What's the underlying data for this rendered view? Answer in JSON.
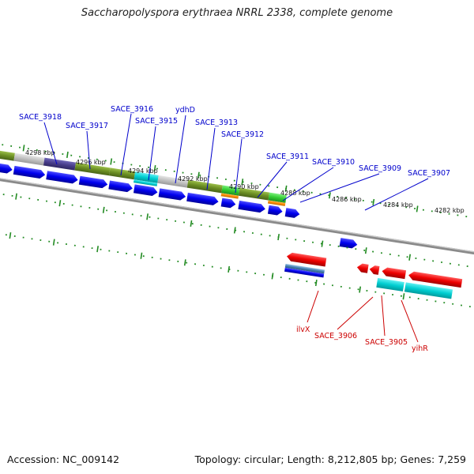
{
  "title": "Saccharopolyspora erythraea NRRL 2338, complete genome",
  "accession_text": "Accession: NC_009142",
  "summary_text": "Topology: circular; Length: 8,212,805 bp; Genes: 7,259",
  "colors": {
    "forward_gene": "#0000ee",
    "reverse_gene": "#ee0000",
    "label_forward": "#0000cc",
    "label_reverse": "#cc0000",
    "tick": "#228b22",
    "backbone": "#888888",
    "olive": "#6b8e23",
    "grey": "#c0c0c0",
    "slate": "#483d8b",
    "cyan": "#00ced1",
    "green": "#32cd32",
    "orange": "#ff8c00"
  },
  "kbp_labels": [
    "4298 kbp",
    "4296 kbp",
    "4294 kbp",
    "4292 kbp",
    "4290 kbp",
    "4288 kbp",
    "4286 kbp",
    "4284 kbp",
    "4282 kbp"
  ],
  "forward_labels": [
    "SACE_3918",
    "SACE_3917",
    "SACE_3916",
    "SACE_3915",
    "ydhD",
    "SACE_3913",
    "SACE_3912",
    "SACE_3911",
    "SACE_3910",
    "SACE_3909",
    "SACE_3907"
  ],
  "reverse_labels": [
    "ilvX",
    "SACE_3906",
    "SACE_3905",
    "yihR"
  ]
}
